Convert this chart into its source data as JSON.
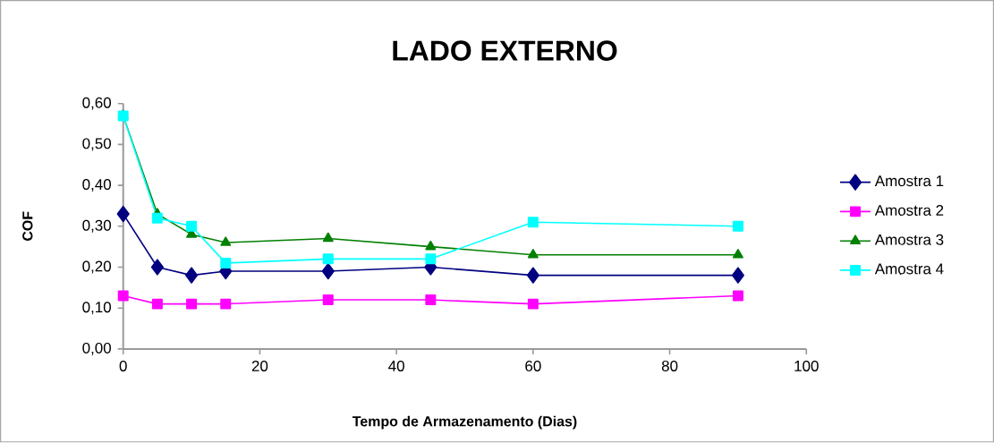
{
  "chart_data": {
    "type": "line",
    "title": "LADO EXTERNO",
    "xlabel": "Tempo de Armazenamento (Dias)",
    "ylabel": "COF",
    "x": [
      0,
      5,
      10,
      15,
      30,
      45,
      60,
      90
    ],
    "series": [
      {
        "name": "Amostra 1",
        "color": "#000080",
        "marker": "diamond",
        "values": [
          0.33,
          0.2,
          0.18,
          0.19,
          0.19,
          0.2,
          0.18,
          0.18
        ]
      },
      {
        "name": "Amostra 2",
        "color": "#ff00ff",
        "marker": "square",
        "values": [
          0.13,
          0.11,
          0.11,
          0.11,
          0.12,
          0.12,
          0.11,
          0.13
        ]
      },
      {
        "name": "Amostra 3",
        "color": "#008000",
        "marker": "triangle",
        "values": [
          0.57,
          0.33,
          0.28,
          0.26,
          0.27,
          0.25,
          0.23,
          0.23
        ]
      },
      {
        "name": "Amostra 4",
        "color": "#00ffff",
        "marker": "square",
        "values": [
          0.57,
          0.32,
          0.3,
          0.21,
          0.22,
          0.22,
          0.31,
          0.3
        ]
      }
    ],
    "xlim": [
      0,
      100
    ],
    "xticks": [
      0,
      20,
      40,
      60,
      80,
      100
    ],
    "ylim": [
      0,
      0.6
    ],
    "yticks": [
      {
        "value": 0,
        "label": "0,00"
      },
      {
        "value": 0.1,
        "label": "0,10"
      },
      {
        "value": 0.2,
        "label": "0,20"
      },
      {
        "value": 0.3,
        "label": "0,30"
      },
      {
        "value": 0.4,
        "label": "0,40"
      },
      {
        "value": 0.5,
        "label": "0,50"
      },
      {
        "value": 0.6,
        "label": "0,60"
      }
    ],
    "grid": false,
    "legend": "right",
    "line_style": "solid"
  }
}
